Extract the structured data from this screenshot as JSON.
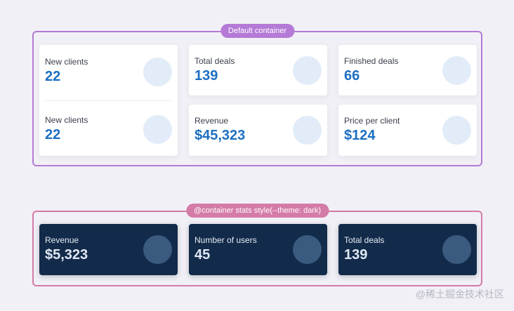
{
  "default_container": {
    "label": "Default container",
    "cards": [
      {
        "label": "New clients",
        "value": "22"
      },
      {
        "label": "New clients",
        "value": "22"
      },
      {
        "label": "Total deals",
        "value": "139"
      },
      {
        "label": "Revenue",
        "value": "$45,323"
      },
      {
        "label": "Finished deals",
        "value": "66"
      },
      {
        "label": "Price per client",
        "value": "$124"
      }
    ]
  },
  "dark_container": {
    "label": "@container stats style(--theme: dark)",
    "cards": [
      {
        "label": "Revenue",
        "value": "$5,323"
      },
      {
        "label": "Number of users",
        "value": "45"
      },
      {
        "label": "Total deals",
        "value": "139"
      }
    ]
  },
  "watermark": "@稀土掘金技术社区",
  "colors": {
    "background": "#f1f0f6",
    "default_frame": "#b47ad6",
    "dark_frame": "#d47ba8",
    "value_blue": "#1c6fc1",
    "dark_card": "#132b4a"
  }
}
